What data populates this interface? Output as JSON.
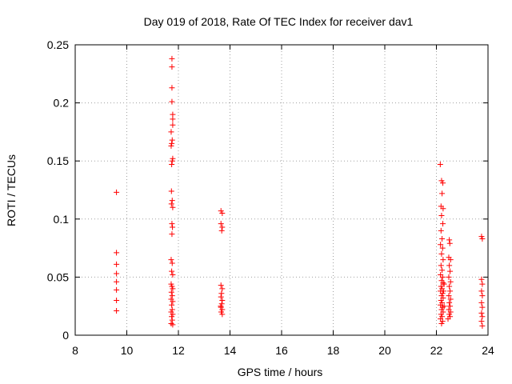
{
  "chart_data": {
    "type": "scatter",
    "title": "Day 019 of 2018, Rate Of TEC Index for receiver dav1",
    "xlabel": "GPS time / hours",
    "ylabel": "ROTI / TECUs",
    "xlim": [
      8,
      24
    ],
    "ylim": [
      0,
      0.25
    ],
    "x_ticks": [
      8,
      10,
      12,
      14,
      16,
      18,
      20,
      22,
      24
    ],
    "x_tick_labels": [
      "8",
      "10",
      "12",
      "14",
      "16",
      "18",
      "20",
      "22",
      "24"
    ],
    "y_ticks": [
      0,
      0.05,
      0.1,
      0.15,
      0.2,
      0.25
    ],
    "y_tick_labels": [
      "0",
      "0.05",
      "0.1",
      "0.15",
      "0.2",
      "0.25"
    ],
    "grid": true,
    "marker": "+",
    "color": "#ff0000",
    "points": [
      [
        9.6,
        0.123
      ],
      [
        9.6,
        0.071
      ],
      [
        9.6,
        0.061
      ],
      [
        9.6,
        0.053
      ],
      [
        9.6,
        0.046
      ],
      [
        9.6,
        0.039
      ],
      [
        9.6,
        0.03
      ],
      [
        9.6,
        0.021
      ],
      [
        11.75,
        0.238
      ],
      [
        11.75,
        0.231
      ],
      [
        11.75,
        0.213
      ],
      [
        11.75,
        0.201
      ],
      [
        11.78,
        0.19
      ],
      [
        11.78,
        0.186
      ],
      [
        11.78,
        0.181
      ],
      [
        11.72,
        0.175
      ],
      [
        11.76,
        0.168
      ],
      [
        11.74,
        0.165
      ],
      [
        11.72,
        0.163
      ],
      [
        11.78,
        0.152
      ],
      [
        11.76,
        0.15
      ],
      [
        11.74,
        0.147
      ],
      [
        11.73,
        0.124
      ],
      [
        11.76,
        0.116
      ],
      [
        11.78,
        0.11
      ],
      [
        11.73,
        0.113
      ],
      [
        11.75,
        0.096
      ],
      [
        11.77,
        0.093
      ],
      [
        11.75,
        0.087
      ],
      [
        11.72,
        0.065
      ],
      [
        11.76,
        0.062
      ],
      [
        11.74,
        0.055
      ],
      [
        11.78,
        0.052
      ],
      [
        11.72,
        0.044
      ],
      [
        11.75,
        0.042
      ],
      [
        11.78,
        0.04
      ],
      [
        11.73,
        0.037
      ],
      [
        11.76,
        0.034
      ],
      [
        11.72,
        0.031
      ],
      [
        11.78,
        0.029
      ],
      [
        11.74,
        0.026
      ],
      [
        11.76,
        0.022
      ],
      [
        11.72,
        0.02
      ],
      [
        11.78,
        0.018
      ],
      [
        11.74,
        0.016
      ],
      [
        11.76,
        0.013
      ],
      [
        11.72,
        0.01
      ],
      [
        11.78,
        0.009
      ],
      [
        13.65,
        0.107
      ],
      [
        13.7,
        0.105
      ],
      [
        13.65,
        0.096
      ],
      [
        13.7,
        0.093
      ],
      [
        13.68,
        0.09
      ],
      [
        13.65,
        0.043
      ],
      [
        13.7,
        0.04
      ],
      [
        13.67,
        0.036
      ],
      [
        13.65,
        0.033
      ],
      [
        13.7,
        0.03
      ],
      [
        13.68,
        0.027
      ],
      [
        13.65,
        0.024
      ],
      [
        13.7,
        0.022
      ],
      [
        13.66,
        0.02
      ],
      [
        13.7,
        0.018
      ],
      [
        13.64,
        0.025
      ],
      [
        22.15,
        0.147
      ],
      [
        22.2,
        0.133
      ],
      [
        22.25,
        0.131
      ],
      [
        22.22,
        0.122
      ],
      [
        22.18,
        0.111
      ],
      [
        22.26,
        0.109
      ],
      [
        22.2,
        0.103
      ],
      [
        22.25,
        0.096
      ],
      [
        22.18,
        0.09
      ],
      [
        22.22,
        0.083
      ],
      [
        22.16,
        0.078
      ],
      [
        22.24,
        0.075
      ],
      [
        22.2,
        0.07
      ],
      [
        22.26,
        0.065
      ],
      [
        22.18,
        0.06
      ],
      [
        22.22,
        0.056
      ],
      [
        22.16,
        0.052
      ],
      [
        22.24,
        0.05
      ],
      [
        22.2,
        0.047
      ],
      [
        22.26,
        0.045
      ],
      [
        22.18,
        0.042
      ],
      [
        22.22,
        0.04
      ],
      [
        22.16,
        0.038
      ],
      [
        22.24,
        0.036
      ],
      [
        22.2,
        0.034
      ],
      [
        22.26,
        0.032
      ],
      [
        22.18,
        0.03
      ],
      [
        22.22,
        0.028
      ],
      [
        22.16,
        0.026
      ],
      [
        22.24,
        0.024
      ],
      [
        22.2,
        0.022
      ],
      [
        22.26,
        0.02
      ],
      [
        22.18,
        0.018
      ],
      [
        22.22,
        0.016
      ],
      [
        22.16,
        0.014
      ],
      [
        22.24,
        0.012
      ],
      [
        22.2,
        0.01
      ],
      [
        22.28,
        0.038
      ],
      [
        22.3,
        0.025
      ],
      [
        22.3,
        0.044
      ],
      [
        22.5,
        0.082
      ],
      [
        22.52,
        0.079
      ],
      [
        22.48,
        0.067
      ],
      [
        22.55,
        0.065
      ],
      [
        22.5,
        0.06
      ],
      [
        22.53,
        0.055
      ],
      [
        22.48,
        0.05
      ],
      [
        22.55,
        0.046
      ],
      [
        22.5,
        0.042
      ],
      [
        22.53,
        0.038
      ],
      [
        22.48,
        0.034
      ],
      [
        22.55,
        0.031
      ],
      [
        22.5,
        0.028
      ],
      [
        22.53,
        0.025
      ],
      [
        22.48,
        0.022
      ],
      [
        22.55,
        0.02
      ],
      [
        22.5,
        0.018
      ],
      [
        22.53,
        0.016
      ],
      [
        22.45,
        0.014
      ],
      [
        23.75,
        0.085
      ],
      [
        23.78,
        0.083
      ],
      [
        23.75,
        0.048
      ],
      [
        23.78,
        0.044
      ],
      [
        23.75,
        0.038
      ],
      [
        23.78,
        0.034
      ],
      [
        23.75,
        0.028
      ],
      [
        23.78,
        0.024
      ],
      [
        23.75,
        0.019
      ],
      [
        23.78,
        0.016
      ],
      [
        23.75,
        0.012
      ],
      [
        23.78,
        0.008
      ]
    ]
  }
}
